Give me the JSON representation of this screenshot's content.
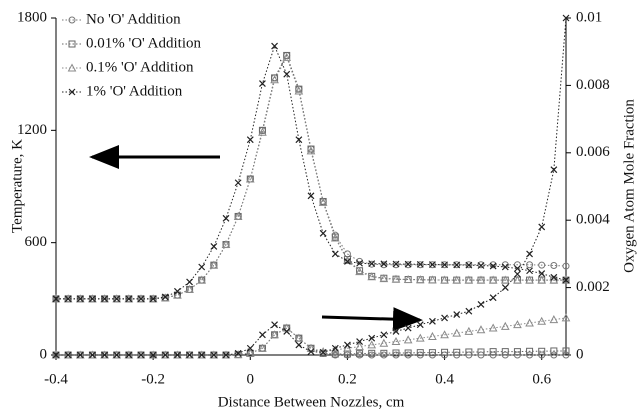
{
  "chart_data": {
    "type": "line",
    "xlabel": "Distance Between Nozzles, cm",
    "ylabel": "Temperature, K",
    "y2label": "Oxygen Atom Mole Fraction",
    "x": [
      -0.4,
      -0.375,
      -0.35,
      -0.325,
      -0.3,
      -0.275,
      -0.25,
      -0.225,
      -0.2,
      -0.175,
      -0.15,
      -0.125,
      -0.1,
      -0.075,
      -0.05,
      -0.025,
      0,
      0.025,
      0.05,
      0.075,
      0.1,
      0.125,
      0.15,
      0.175,
      0.2,
      0.225,
      0.25,
      0.275,
      0.3,
      0.325,
      0.35,
      0.375,
      0.4,
      0.425,
      0.45,
      0.475,
      0.5,
      0.525,
      0.55,
      0.575,
      0.6,
      0.625,
      0.65
    ],
    "xlim": [
      -0.4,
      0.65
    ],
    "xticks": [
      -0.4,
      -0.2,
      0,
      0.2,
      0.4,
      0.6
    ],
    "ylim": [
      0,
      1800
    ],
    "yticks": [
      0,
      600,
      1200,
      1800
    ],
    "y2lim": [
      0,
      0.01
    ],
    "y2ticks": [
      0,
      0.002,
      0.004,
      0.006,
      0.008,
      0.01
    ],
    "legend": "upper left",
    "series": [
      {
        "name": "No 'O' Addition",
        "color": "#777777",
        "marker": "circle",
        "axis": "y",
        "values": [
          300,
          300,
          300,
          300,
          300,
          300,
          300,
          300,
          300,
          305,
          320,
          350,
          400,
          480,
          590,
          740,
          940,
          1200,
          1480,
          1600,
          1420,
          1100,
          820,
          640,
          540,
          500,
          485,
          482,
          482,
          482,
          482,
          482,
          482,
          482,
          482,
          482,
          482,
          482,
          482,
          482,
          480,
          478,
          475
        ]
      },
      {
        "name": "0.01% 'O' Addition",
        "color": "#666666",
        "marker": "square",
        "axis": "y",
        "values": [
          300,
          300,
          300,
          300,
          300,
          300,
          300,
          300,
          300,
          305,
          320,
          350,
          400,
          480,
          590,
          740,
          940,
          1200,
          1480,
          1600,
          1420,
          1100,
          820,
          630,
          510,
          450,
          420,
          410,
          405,
          403,
          402,
          401,
          400,
          400,
          400,
          400,
          400,
          400,
          400,
          400,
          400,
          400,
          400
        ]
      },
      {
        "name": "0.1% 'O' Addition",
        "color": "#8a8a8a",
        "marker": "triangle",
        "axis": "y",
        "values": [
          300,
          300,
          300,
          300,
          300,
          300,
          300,
          300,
          300,
          305,
          320,
          350,
          400,
          480,
          590,
          740,
          940,
          1190,
          1470,
          1590,
          1410,
          1090,
          815,
          625,
          505,
          445,
          418,
          408,
          405,
          403,
          402,
          401,
          400,
          400,
          400,
          400,
          400,
          400,
          400,
          400,
          400,
          400,
          400
        ]
      },
      {
        "name": "1% 'O' Addition",
        "color": "#222222",
        "marker": "x",
        "axis": "y",
        "values": [
          300,
          300,
          300,
          300,
          300,
          300,
          300,
          300,
          300,
          310,
          340,
          390,
          470,
          580,
          730,
          920,
          1150,
          1450,
          1650,
          1500,
          1150,
          850,
          650,
          540,
          500,
          490,
          488,
          487,
          486,
          485,
          484,
          483,
          482,
          481,
          480,
          478,
          475,
          470,
          462,
          450,
          435,
          415,
          400
        ]
      },
      {
        "name": "No 'O' Addition",
        "color": "#777777",
        "marker": "circle",
        "axis": "y2",
        "values": [
          0,
          0,
          0,
          0,
          0,
          0,
          0,
          0,
          0,
          0,
          0,
          0,
          0,
          0,
          0,
          1e-05,
          5e-05,
          0.0002,
          0.0006,
          0.0008,
          0.0005,
          0.0002,
          5e-05,
          0,
          0,
          0,
          0,
          0,
          0,
          0,
          0,
          0,
          0,
          0,
          0,
          0,
          0,
          0,
          0,
          0,
          0,
          0,
          0
        ]
      },
      {
        "name": "0.01% 'O' Addition",
        "color": "#666666",
        "marker": "square",
        "axis": "y2",
        "values": [
          0,
          0,
          0,
          0,
          0,
          0,
          0,
          0,
          0,
          0,
          0,
          0,
          0,
          0,
          0,
          1e-05,
          5e-05,
          0.0002,
          0.0006,
          0.0008,
          0.0005,
          0.0002,
          5e-05,
          3e-05,
          3e-05,
          4e-05,
          5e-05,
          5e-05,
          6e-05,
          6e-05,
          7e-05,
          7e-05,
          8e-05,
          8e-05,
          9e-05,
          9e-05,
          0.0001,
          0.0001,
          0.0001,
          0.00011,
          0.00011,
          0.00012,
          0.00012
        ]
      },
      {
        "name": "0.1% 'O' Addition",
        "color": "#8a8a8a",
        "marker": "triangle",
        "axis": "y2",
        "values": [
          0,
          0,
          0,
          0,
          0,
          0,
          0,
          0,
          0,
          0,
          0,
          0,
          0,
          0,
          0,
          1e-05,
          5e-05,
          0.0002,
          0.0006,
          0.0008,
          0.0005,
          0.0002,
          0.0001,
          0.00015,
          0.0002,
          0.00025,
          0.0003,
          0.00035,
          0.0004,
          0.00045,
          0.0005,
          0.00055,
          0.0006,
          0.00065,
          0.0007,
          0.00075,
          0.0008,
          0.00085,
          0.0009,
          0.00095,
          0.001,
          0.00105,
          0.0011
        ]
      },
      {
        "name": "1% 'O' Addition",
        "color": "#222222",
        "marker": "x",
        "axis": "y2",
        "values": [
          0,
          0,
          0,
          0,
          0,
          0,
          0,
          0,
          0,
          0,
          0,
          0,
          0,
          0,
          0,
          5e-05,
          0.0002,
          0.0006,
          0.0009,
          0.0007,
          0.0003,
          0.0001,
          8e-05,
          0.0002,
          0.0003,
          0.0004,
          0.0005,
          0.0006,
          0.0007,
          0.0008,
          0.0009,
          0.001,
          0.0011,
          0.0012,
          0.0013,
          0.0015,
          0.0017,
          0.002,
          0.0024,
          0.003,
          0.0038,
          0.0055,
          0.01
        ]
      }
    ]
  }
}
